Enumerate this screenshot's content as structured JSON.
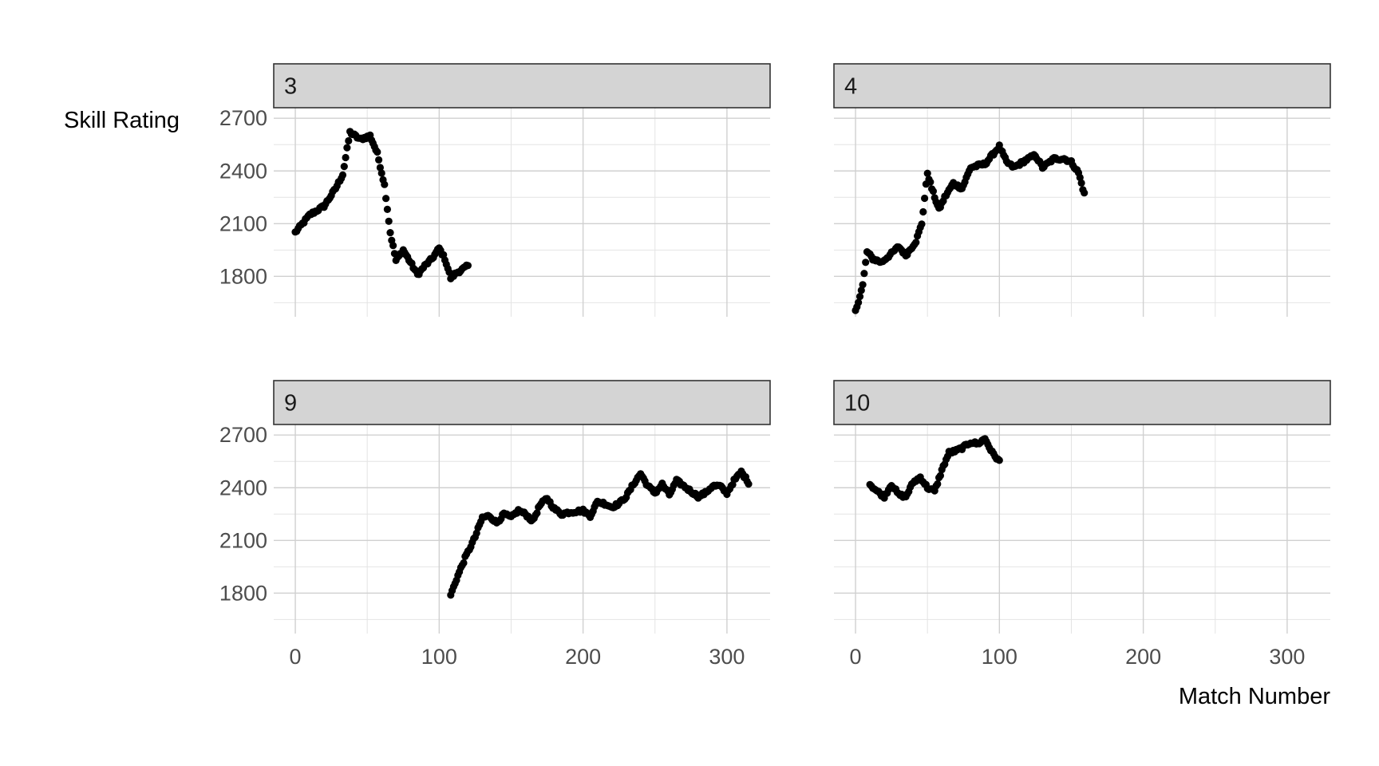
{
  "chart_data": {
    "type": "scatter",
    "xlabel": "Match Number",
    "ylabel": "Skill Rating",
    "xlim": [
      -15,
      330
    ],
    "ylim": [
      1570,
      2760
    ],
    "x_ticks": [
      0,
      100,
      200,
      300
    ],
    "y_ticks": [
      1800,
      2100,
      2400,
      2700
    ],
    "grid": true,
    "point_color": "#000000",
    "strip_fill": "#d4d4d4",
    "panels": [
      {
        "label": "3",
        "anchors": [
          [
            0,
            2050
          ],
          [
            5,
            2100
          ],
          [
            10,
            2150
          ],
          [
            20,
            2200
          ],
          [
            28,
            2300
          ],
          [
            33,
            2380
          ],
          [
            38,
            2620
          ],
          [
            45,
            2580
          ],
          [
            52,
            2600
          ],
          [
            57,
            2500
          ],
          [
            62,
            2320
          ],
          [
            66,
            2050
          ],
          [
            70,
            1890
          ],
          [
            75,
            1950
          ],
          [
            80,
            1880
          ],
          [
            85,
            1810
          ],
          [
            90,
            1860
          ],
          [
            95,
            1900
          ],
          [
            100,
            1960
          ],
          [
            104,
            1900
          ],
          [
            108,
            1790
          ],
          [
            112,
            1820
          ],
          [
            116,
            1840
          ],
          [
            120,
            1860
          ]
        ]
      },
      {
        "label": "4",
        "anchors": [
          [
            0,
            1600
          ],
          [
            5,
            1750
          ],
          [
            8,
            1940
          ],
          [
            12,
            1900
          ],
          [
            18,
            1880
          ],
          [
            25,
            1930
          ],
          [
            30,
            1970
          ],
          [
            35,
            1920
          ],
          [
            42,
            2000
          ],
          [
            46,
            2100
          ],
          [
            50,
            2390
          ],
          [
            53,
            2300
          ],
          [
            58,
            2180
          ],
          [
            62,
            2250
          ],
          [
            68,
            2330
          ],
          [
            74,
            2300
          ],
          [
            80,
            2420
          ],
          [
            90,
            2440
          ],
          [
            100,
            2540
          ],
          [
            105,
            2450
          ],
          [
            110,
            2420
          ],
          [
            120,
            2470
          ],
          [
            125,
            2490
          ],
          [
            130,
            2420
          ],
          [
            138,
            2470
          ],
          [
            145,
            2470
          ],
          [
            150,
            2450
          ],
          [
            155,
            2390
          ],
          [
            159,
            2270
          ]
        ]
      },
      {
        "label": "9",
        "anchors": [
          [
            108,
            1790
          ],
          [
            112,
            1880
          ],
          [
            118,
            2000
          ],
          [
            125,
            2120
          ],
          [
            130,
            2230
          ],
          [
            135,
            2240
          ],
          [
            140,
            2200
          ],
          [
            145,
            2250
          ],
          [
            150,
            2230
          ],
          [
            155,
            2270
          ],
          [
            160,
            2250
          ],
          [
            165,
            2210
          ],
          [
            170,
            2300
          ],
          [
            175,
            2340
          ],
          [
            180,
            2280
          ],
          [
            185,
            2250
          ],
          [
            190,
            2260
          ],
          [
            200,
            2270
          ],
          [
            205,
            2240
          ],
          [
            210,
            2320
          ],
          [
            215,
            2310
          ],
          [
            220,
            2290
          ],
          [
            225,
            2310
          ],
          [
            230,
            2350
          ],
          [
            235,
            2420
          ],
          [
            240,
            2480
          ],
          [
            245,
            2410
          ],
          [
            250,
            2370
          ],
          [
            255,
            2420
          ],
          [
            260,
            2360
          ],
          [
            265,
            2440
          ],
          [
            270,
            2410
          ],
          [
            275,
            2380
          ],
          [
            280,
            2350
          ],
          [
            285,
            2370
          ],
          [
            290,
            2410
          ],
          [
            295,
            2410
          ],
          [
            300,
            2370
          ],
          [
            305,
            2440
          ],
          [
            310,
            2490
          ],
          [
            315,
            2430
          ]
        ]
      },
      {
        "label": "10",
        "anchors": [
          [
            10,
            2420
          ],
          [
            15,
            2380
          ],
          [
            20,
            2350
          ],
          [
            25,
            2420
          ],
          [
            30,
            2360
          ],
          [
            35,
            2350
          ],
          [
            40,
            2430
          ],
          [
            45,
            2460
          ],
          [
            50,
            2400
          ],
          [
            55,
            2380
          ],
          [
            60,
            2500
          ],
          [
            65,
            2600
          ],
          [
            70,
            2610
          ],
          [
            75,
            2630
          ],
          [
            80,
            2660
          ],
          [
            85,
            2650
          ],
          [
            90,
            2680
          ],
          [
            95,
            2600
          ],
          [
            100,
            2550
          ]
        ]
      }
    ]
  }
}
